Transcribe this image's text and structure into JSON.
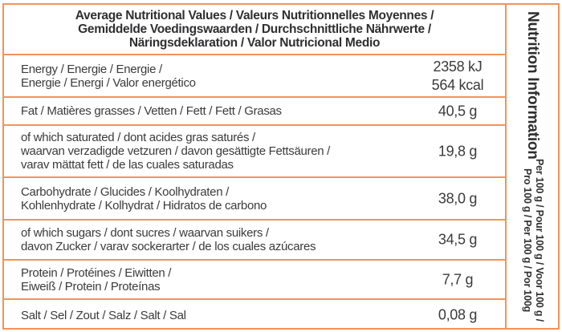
{
  "table": {
    "header": "Average Nutritional Values / Valeurs Nutritionnelles Moyennes /\nGemiddelde Voedingswaarden / Durchschnittliche Nährwerte /\nNäringsdeklaration / Valor Nutricional Medio",
    "rows": [
      {
        "id": "energy",
        "label": "Energy / Energie / Energie /\nEnergie / Energi / Valor energético",
        "value": "2358 kJ\n564 kcal"
      },
      {
        "id": "fat",
        "label": "Fat / Matières grasses / Vetten / Fett / Fett / Grasas",
        "value": "40,5 g"
      },
      {
        "id": "saturated",
        "label": "of which saturated / dont acides gras saturés /\nwaarvan verzadigde vetzuren / davon gesättigte Fettsäuren /\nvarav mättat fett / de las cuales saturadas",
        "value": "19,8 g"
      },
      {
        "id": "carbohydrate",
        "label": "Carbohydrate / Glucides / Koolhydraten /\nKohlenhydrate / Kolhydrat / Hidratos de carbono",
        "value": "38,0 g"
      },
      {
        "id": "sugars",
        "label": "of which sugars / dont sucres / waarvan suikers /\ndavon Zucker / varav sockerarter / de los cuales azúcares",
        "value": "34,5 g"
      },
      {
        "id": "protein",
        "label": "Protein / Protéines / Eiwitten /\nEiweiß / Protein / Proteínas",
        "value": "7,7 g"
      },
      {
        "id": "salt",
        "label": "Salt / Sel / Zout / Salz / Salt / Sal",
        "value": "0,08 g"
      }
    ]
  },
  "sidebar": {
    "title": "Nutrition Information",
    "subtitle": "Per 100 g / Pour 100 g / Voor 100 g /\nPro 100 g / Per 100 g / Por 100g"
  },
  "colors": {
    "border_orange": "#F2935A",
    "text_dark": "#3B3B3D"
  }
}
